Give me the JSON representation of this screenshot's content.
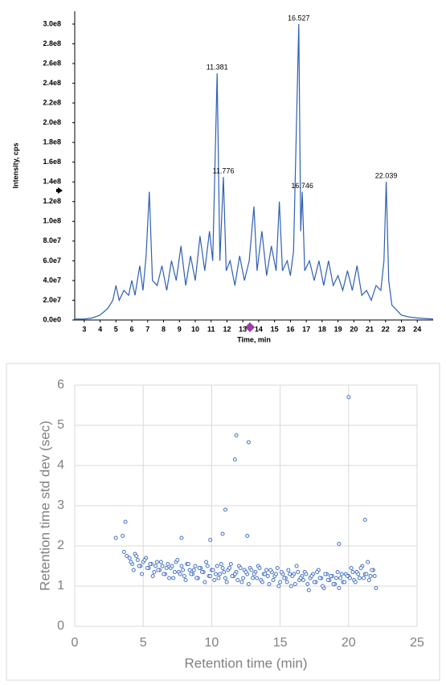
{
  "chart_data": [
    {
      "type": "line",
      "x_label": "Time, min",
      "y_label": "Intensity, cps",
      "color": "#2f5fb3",
      "x": [
        2.4,
        3.0,
        3.5,
        4.0,
        4.5,
        4.8,
        5.0,
        5.2,
        5.5,
        5.8,
        6.0,
        6.2,
        6.5,
        6.7,
        6.9,
        7.1,
        7.3,
        7.6,
        7.9,
        8.2,
        8.5,
        8.8,
        9.1,
        9.4,
        9.7,
        10.0,
        10.3,
        10.6,
        10.9,
        11.1,
        11.381,
        11.55,
        11.776,
        11.95,
        12.2,
        12.5,
        12.8,
        13.1,
        13.4,
        13.7,
        13.9,
        14.2,
        14.5,
        14.8,
        15.1,
        15.3,
        15.5,
        15.8,
        16.0,
        16.2,
        16.527,
        16.65,
        16.746,
        16.9,
        17.2,
        17.5,
        17.8,
        18.1,
        18.4,
        18.7,
        19.0,
        19.3,
        19.6,
        19.9,
        20.2,
        20.5,
        20.8,
        21.1,
        21.4,
        21.7,
        21.9,
        22.039,
        22.2,
        22.4,
        22.7,
        23.0,
        23.5,
        24.0,
        25.0
      ],
      "values": [
        1000000.0,
        1000000.0,
        2000000.0,
        5000000.0,
        12000000.0,
        20000000.0,
        35000000.0,
        20000000.0,
        30000000.0,
        25000000.0,
        40000000.0,
        25000000.0,
        55000000.0,
        30000000.0,
        65000000.0,
        130000000.0,
        40000000.0,
        35000000.0,
        55000000.0,
        30000000.0,
        60000000.0,
        40000000.0,
        75000000.0,
        35000000.0,
        65000000.0,
        40000000.0,
        85000000.0,
        50000000.0,
        90000000.0,
        60000000.0,
        250000000.0,
        60000000.0,
        145000000.0,
        50000000.0,
        60000000.0,
        35000000.0,
        65000000.0,
        40000000.0,
        60000000.0,
        115000000.0,
        50000000.0,
        90000000.0,
        45000000.0,
        75000000.0,
        50000000.0,
        120000000.0,
        50000000.0,
        60000000.0,
        45000000.0,
        70000000.0,
        300000000.0,
        90000000.0,
        130000000.0,
        50000000.0,
        60000000.0,
        40000000.0,
        60000000.0,
        35000000.0,
        60000000.0,
        35000000.0,
        45000000.0,
        30000000.0,
        50000000.0,
        30000000.0,
        55000000.0,
        25000000.0,
        30000000.0,
        20000000.0,
        35000000.0,
        30000000.0,
        60000000.0,
        140000000.0,
        40000000.0,
        15000000.0,
        10000000.0,
        5000000.0,
        3000000.0,
        2000000.0,
        1000000.0
      ],
      "annotations": [
        {
          "x": 11.381,
          "y": 250000000.0
        },
        {
          "x": 11.776,
          "y": 145000000.0
        },
        {
          "x": 16.527,
          "y": 300000000.0
        },
        {
          "x": 16.746,
          "y": 130000000.0
        },
        {
          "x": 22.039,
          "y": 140000000.0
        }
      ],
      "xlim": [
        2.4,
        25
      ],
      "xticks": [
        3,
        4,
        5,
        6,
        7,
        8,
        9,
        10,
        11,
        12,
        13,
        14,
        15,
        16,
        17,
        18,
        19,
        20,
        21,
        22,
        23,
        24
      ],
      "ylim": [
        0,
        313000000.0
      ],
      "yticks": [
        {
          "value": 0,
          "label": "0.0e0"
        },
        {
          "value": 20000000.0,
          "label": "2.0e7"
        },
        {
          "value": 40000000.0,
          "label": "4.0e7"
        },
        {
          "value": 60000000.0,
          "label": "6.0e7"
        },
        {
          "value": 80000000.0,
          "label": "8.0e7"
        },
        {
          "value": 100000000.0,
          "label": "1.0e8"
        },
        {
          "value": 120000000.0,
          "label": "1.2e8"
        },
        {
          "value": 140000000.0,
          "label": "1.4e8"
        },
        {
          "value": 160000000.0,
          "label": "1.6e8"
        },
        {
          "value": 180000000.0,
          "label": "1.8e8"
        },
        {
          "value": 200000000.0,
          "label": "2.0e8"
        },
        {
          "value": 220000000.0,
          "label": "2.2e8"
        },
        {
          "value": 240000000.0,
          "label": "2.4e8"
        },
        {
          "value": 260000000.0,
          "label": "2.6e8"
        },
        {
          "value": 280000000.0,
          "label": "2.8e8"
        },
        {
          "value": 300000000.0,
          "label": "3.0e8"
        }
      ],
      "grid": false
    },
    {
      "type": "scatter",
      "x_label": "Retention time (min)",
      "y_label": "Retention time std dev (sec)",
      "color": "#4472c4",
      "x": [
        3.6,
        3.8,
        4.0,
        4.2,
        4.4,
        4.6,
        4.8,
        5.0,
        5.2,
        5.4,
        5.6,
        5.8,
        6.0,
        6.2,
        6.4,
        6.6,
        6.8,
        7.0,
        7.2,
        7.4,
        7.6,
        7.8,
        8.0,
        8.2,
        8.4,
        8.6,
        8.8,
        9.0,
        9.2,
        9.4,
        9.6,
        9.8,
        10.0,
        10.2,
        10.4,
        10.6,
        10.8,
        11.0,
        11.2,
        11.4,
        11.6,
        11.8,
        12.0,
        12.2,
        12.4,
        12.6,
        12.8,
        13.0,
        13.2,
        13.4,
        13.6,
        13.8,
        14.0,
        14.2,
        14.4,
        14.6,
        14.8,
        15.0,
        15.2,
        15.4,
        15.6,
        15.8,
        16.0,
        16.2,
        16.4,
        16.6,
        16.8,
        17.0,
        17.2,
        17.4,
        17.6,
        17.8,
        18.0,
        18.2,
        18.4,
        18.6,
        18.8,
        19.0,
        19.2,
        19.4,
        19.6,
        19.8,
        20.0,
        20.2,
        20.4,
        20.6,
        20.8,
        21.0,
        21.2,
        21.4,
        21.6,
        21.8,
        22.0,
        4.1,
        4.3,
        4.5,
        4.7,
        4.9,
        5.1,
        5.3,
        5.5,
        5.7,
        5.9,
        6.1,
        6.3,
        6.5,
        6.7,
        6.9,
        7.1,
        7.3,
        7.5,
        7.7,
        7.9,
        8.1,
        8.3,
        8.5,
        8.7,
        8.9,
        9.1,
        9.3,
        9.5,
        9.7,
        9.9,
        10.1,
        10.3,
        10.5,
        10.7,
        10.9,
        11.1,
        11.3,
        11.5,
        11.7,
        11.9,
        12.1,
        12.3,
        12.5,
        12.7,
        12.9,
        13.1,
        13.3,
        13.5,
        13.7,
        13.9,
        14.1,
        14.3,
        14.5,
        14.7,
        14.9,
        15.1,
        15.3,
        15.5,
        15.7,
        15.9,
        16.1,
        16.3,
        16.5,
        16.7,
        16.9,
        17.1,
        17.3,
        17.5,
        17.7,
        17.9,
        18.1,
        18.3,
        18.5,
        18.7,
        18.9,
        19.1,
        19.3,
        19.5,
        19.7,
        19.9,
        20.1,
        20.3,
        20.5,
        20.7,
        20.9,
        21.1,
        21.3,
        21.5,
        21.7,
        21.9,
        20.0,
        11.8,
        12.7,
        11.7,
        11.0,
        21.2,
        3.7,
        3.0,
        3.5,
        12.6,
        10.8,
        7.8,
        19.3,
        9.9
      ],
      "values": [
        1.85,
        1.75,
        1.7,
        1.55,
        1.8,
        1.65,
        1.5,
        1.6,
        1.7,
        1.45,
        1.55,
        1.35,
        1.6,
        1.4,
        1.5,
        1.3,
        1.55,
        1.45,
        1.2,
        1.6,
        1.35,
        1.5,
        1.25,
        1.55,
        1.4,
        1.3,
        1.5,
        1.2,
        1.45,
        1.35,
        1.6,
        1.25,
        1.4,
        1.15,
        1.5,
        1.3,
        1.45,
        1.2,
        1.4,
        1.55,
        1.25,
        1.35,
        1.5,
        1.1,
        1.4,
        1.3,
        1.45,
        1.2,
        1.35,
        1.5,
        1.15,
        1.3,
        1.4,
        1.05,
        1.35,
        1.25,
        1.45,
        1.1,
        1.3,
        1.2,
        1.4,
        1.0,
        1.3,
        1.5,
        1.15,
        1.25,
        1.35,
        1.05,
        1.2,
        1.3,
        1.1,
        1.4,
        1.2,
        0.95,
        1.3,
        1.15,
        1.25,
        1.05,
        1.35,
        1.2,
        1.1,
        1.3,
        1.25,
        1.45,
        1.15,
        1.35,
        1.2,
        1.5,
        1.3,
        1.6,
        1.25,
        1.4,
        0.95,
        1.6,
        1.4,
        1.75,
        1.5,
        1.3,
        1.65,
        1.45,
        1.55,
        1.25,
        1.5,
        1.4,
        1.6,
        1.3,
        1.45,
        1.2,
        1.5,
        1.35,
        1.65,
        1.3,
        1.4,
        1.15,
        1.55,
        1.3,
        1.4,
        1.2,
        1.45,
        1.35,
        1.1,
        1.5,
        1.25,
        1.4,
        1.3,
        1.2,
        1.55,
        1.35,
        1.1,
        1.45,
        1.25,
        1.3,
        1.15,
        1.45,
        1.2,
        1.35,
        1.05,
        1.4,
        1.3,
        1.2,
        1.45,
        1.1,
        1.3,
        1.25,
        1.4,
        1.15,
        1.3,
        1.0,
        1.35,
        1.2,
        1.1,
        1.3,
        1.25,
        1.05,
        1.35,
        1.2,
        1.15,
        1.3,
        0.9,
        1.25,
        1.1,
        1.35,
        1.2,
        1.0,
        1.3,
        1.15,
        1.25,
        1.05,
        1.2,
        0.95,
        1.3,
        1.1,
        1.25,
        1.2,
        1.35,
        1.1,
        1.3,
        1.45,
        1.2,
        1.3,
        1.15,
        1.4,
        1.25,
        5.7,
        4.75,
        4.58,
        4.15,
        2.9,
        2.65,
        2.6,
        2.2,
        2.25,
        2.25,
        2.3,
        2.2,
        2.05,
        2.15
      ],
      "xlim": [
        0,
        25
      ],
      "xticks": [
        0,
        5,
        10,
        15,
        20,
        25
      ],
      "ylim": [
        0,
        6
      ],
      "yticks": [
        0,
        1,
        2,
        3,
        4,
        5,
        6
      ],
      "grid": true
    }
  ]
}
